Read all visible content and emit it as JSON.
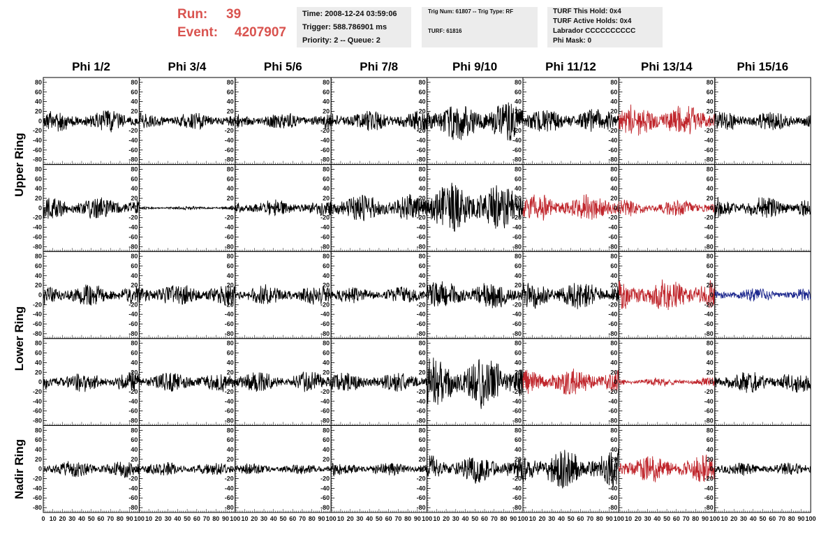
{
  "header": {
    "run_label": "Run:",
    "run_value": "39",
    "event_label": "Event:",
    "event_value": "4207907",
    "info1": [
      "Time: 2008-12-24 03:59:06",
      "Trigger: 588.786901 ms",
      "Priority: 2 -- Queue: 2"
    ],
    "info2": [
      "Trig Num: 61807 -- Trig Type: RF",
      "TURF: 61816"
    ],
    "info3": [
      "TURF This Hold: 0x4",
      "TURF Active Holds: 0x4",
      "Labrador CCCCCCCCCC",
      "Phi Mask: 0"
    ]
  },
  "colors": {
    "title_red": "#d9534f",
    "normal": "#000000",
    "triggered": "#c0272d",
    "masked": "#1f2a8f"
  },
  "chart_data": {
    "type": "line",
    "columns": [
      "Phi 1/2",
      "Phi 3/4",
      "Phi 5/6",
      "Phi 7/8",
      "Phi 9/10",
      "Phi 11/12",
      "Phi 13/14",
      "Phi 15/16"
    ],
    "rows": [
      "Upper Ring",
      "Upper Ring",
      "Lower Ring",
      "Lower Ring",
      "Nadir Ring"
    ],
    "row_labels": [
      "Upper Ring",
      "Lower Ring",
      "Nadir Ring"
    ],
    "xlim": [
      0,
      100
    ],
    "ylim": [
      -90,
      90
    ],
    "y_ticks": [
      80,
      60,
      40,
      20,
      0,
      -20,
      -40,
      -60,
      -80
    ],
    "x_ticks_first": [
      "0",
      "10",
      "20",
      "30",
      "40",
      "50",
      "60",
      "70",
      "80",
      "90",
      "100"
    ],
    "x_ticks_other": [
      "10",
      "20",
      "30",
      "40",
      "50",
      "60",
      "70",
      "80",
      "90",
      "100"
    ],
    "amplitude": [
      [
        20,
        15,
        15,
        20,
        35,
        22,
        30,
        18
      ],
      [
        20,
        3,
        15,
        25,
        45,
        25,
        15,
        20
      ],
      [
        20,
        20,
        18,
        15,
        25,
        25,
        30,
        12
      ],
      [
        18,
        18,
        18,
        18,
        45,
        25,
        8,
        20
      ],
      [
        15,
        12,
        10,
        12,
        25,
        35,
        25,
        12
      ]
    ],
    "trace_color": [
      [
        "normal",
        "normal",
        "normal",
        "normal",
        "normal",
        "normal",
        "triggered",
        "normal"
      ],
      [
        "normal",
        "normal",
        "normal",
        "normal",
        "normal",
        "triggered",
        "triggered",
        "normal"
      ],
      [
        "normal",
        "normal",
        "normal",
        "normal",
        "normal",
        "normal",
        "triggered",
        "masked"
      ],
      [
        "normal",
        "normal",
        "normal",
        "normal",
        "normal",
        "triggered",
        "triggered",
        "normal"
      ],
      [
        "normal",
        "normal",
        "normal",
        "normal",
        "normal",
        "normal",
        "triggered",
        "normal"
      ]
    ]
  }
}
